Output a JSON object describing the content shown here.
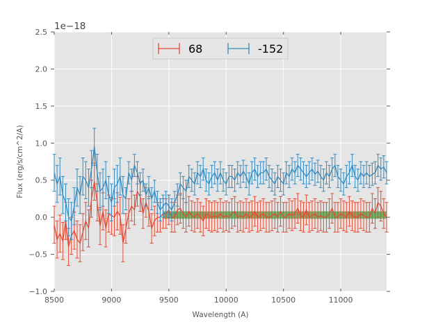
{
  "chart_data": {
    "type": "line",
    "title": "",
    "xlabel": "Wavelength (A)",
    "ylabel": "Flux (erg/s/cm^2/A)",
    "offset_text": "1e−18",
    "xlim": [
      8500,
      11400
    ],
    "ylim": [
      -1.0,
      2.5
    ],
    "xticks": [
      8500,
      9000,
      9500,
      10000,
      10500,
      11000
    ],
    "xtick_labels": [
      "8500",
      "9000",
      "9500",
      "10000",
      "10500",
      "11000"
    ],
    "yticks": [
      -1.0,
      -0.5,
      0.0,
      0.5,
      1.0,
      1.5,
      2.0,
      2.5
    ],
    "ytick_labels": [
      "−1.0",
      "−0.5",
      "0.0",
      "0.5",
      "1.0",
      "1.5",
      "2.0",
      "2.5"
    ],
    "grid": true,
    "legend_position": "upper center",
    "band": {
      "x_start": 9450,
      "x_end": 11400,
      "y_low": -0.02,
      "y_high": 0.08,
      "color": "#4a9a3a"
    },
    "x_start": 8500,
    "x_step": 25,
    "series": [
      {
        "name": "68",
        "color": "#e24a33",
        "values": [
          -0.1,
          -0.3,
          -0.22,
          -0.32,
          -0.05,
          -0.4,
          -0.25,
          -0.18,
          -0.3,
          -0.35,
          -0.2,
          -0.05,
          -0.15,
          0.25,
          0.48,
          0.2,
          -0.12,
          0.08,
          -0.15,
          0.05,
          0.02,
          0.0,
          0.08,
          0.02,
          -0.35,
          -0.15,
          0.05,
          0.15,
          0.1,
          0.35,
          0.28,
          0.05,
          0.2,
          0.08,
          -0.15,
          -0.05,
          0.0,
          0.0,
          0.05,
          0.05,
          0.1,
          0.0,
          0.0,
          0.1,
          0.12,
          0.05,
          0.0,
          0.08,
          0.02,
          0.0,
          0.05,
          0.0,
          -0.05,
          0.05,
          0.02,
          0.0,
          0.02,
          0.0,
          0.05,
          0.0,
          0.02,
          0.0,
          0.05,
          0.08,
          0.0,
          0.02,
          0.0,
          0.05,
          0.0,
          0.02,
          0.08,
          0.0,
          0.02,
          0.05,
          0.0,
          0.0,
          0.02,
          0.05,
          0.0,
          0.08,
          0.0,
          0.0,
          0.05,
          0.02,
          0.05,
          0.12,
          0.02,
          0.0,
          0.1,
          0.0,
          0.02,
          0.05,
          0.0,
          0.02,
          0.0,
          0.0,
          0.05,
          0.12,
          0.0,
          0.0,
          0.05,
          0.02,
          0.0,
          0.08,
          0.02,
          0.0,
          0.0,
          0.05,
          0.02,
          0.0,
          0.0,
          0.12,
          0.05,
          0.2,
          0.15,
          0.05,
          0.0
        ],
        "errors": [
          0.25,
          0.25,
          0.25,
          0.25,
          0.25,
          0.25,
          0.25,
          0.25,
          0.25,
          0.25,
          0.25,
          0.25,
          0.25,
          0.25,
          0.25,
          0.25,
          0.25,
          0.25,
          0.25,
          0.25,
          0.25,
          0.25,
          0.25,
          0.25,
          0.25,
          0.2,
          0.2,
          0.2,
          0.2,
          0.2,
          0.2,
          0.2,
          0.2,
          0.2,
          0.2,
          0.2,
          0.2,
          0.2,
          0.2,
          0.2,
          0.2,
          0.2,
          0.2,
          0.2,
          0.2,
          0.2,
          0.2,
          0.2,
          0.2,
          0.2,
          0.2,
          0.2,
          0.2,
          0.2,
          0.2,
          0.2,
          0.2,
          0.2,
          0.2,
          0.2,
          0.2,
          0.2,
          0.2,
          0.2,
          0.2,
          0.2,
          0.2,
          0.2,
          0.2,
          0.2,
          0.2,
          0.2,
          0.2,
          0.2,
          0.2,
          0.2,
          0.2,
          0.2,
          0.2,
          0.2,
          0.2,
          0.2,
          0.2,
          0.2,
          0.2,
          0.2,
          0.2,
          0.2,
          0.2,
          0.2,
          0.2,
          0.2,
          0.2,
          0.2,
          0.2,
          0.2,
          0.2,
          0.2,
          0.2,
          0.2,
          0.2,
          0.2,
          0.2,
          0.2,
          0.2,
          0.2,
          0.2,
          0.2,
          0.2,
          0.2,
          0.2,
          0.2,
          0.2,
          0.2,
          0.2,
          0.2,
          0.2
        ]
      },
      {
        "name": "-152",
        "color": "#348abd",
        "values": [
          0.6,
          0.45,
          0.55,
          0.3,
          0.2,
          0.0,
          -0.05,
          0.15,
          0.4,
          0.3,
          0.55,
          0.5,
          0.4,
          0.65,
          0.95,
          0.6,
          0.35,
          0.4,
          0.5,
          0.3,
          0.2,
          0.4,
          0.45,
          0.55,
          0.3,
          0.25,
          0.6,
          0.5,
          0.7,
          0.6,
          0.45,
          0.5,
          0.3,
          0.4,
          0.25,
          0.35,
          0.2,
          0.1,
          0.15,
          0.2,
          0.15,
          0.1,
          0.2,
          0.3,
          0.45,
          0.4,
          0.35,
          0.55,
          0.5,
          0.45,
          0.6,
          0.55,
          0.65,
          0.5,
          0.45,
          0.55,
          0.6,
          0.5,
          0.6,
          0.5,
          0.45,
          0.55,
          0.55,
          0.5,
          0.6,
          0.55,
          0.62,
          0.55,
          0.45,
          0.6,
          0.65,
          0.55,
          0.6,
          0.6,
          0.65,
          0.55,
          0.5,
          0.45,
          0.55,
          0.5,
          0.45,
          0.6,
          0.55,
          0.65,
          0.6,
          0.7,
          0.65,
          0.6,
          0.55,
          0.6,
          0.65,
          0.58,
          0.62,
          0.55,
          0.5,
          0.6,
          0.55,
          0.65,
          0.7,
          0.55,
          0.5,
          0.45,
          0.55,
          0.6,
          0.7,
          0.55,
          0.5,
          0.6,
          0.55,
          0.6,
          0.55,
          0.58,
          0.6,
          0.7,
          0.65,
          0.68,
          0.6
        ],
        "errors": [
          0.25,
          0.25,
          0.25,
          0.25,
          0.25,
          0.25,
          0.25,
          0.25,
          0.25,
          0.25,
          0.25,
          0.25,
          0.25,
          0.25,
          0.25,
          0.25,
          0.25,
          0.25,
          0.25,
          0.25,
          0.25,
          0.25,
          0.25,
          0.25,
          0.25,
          0.15,
          0.15,
          0.15,
          0.15,
          0.15,
          0.15,
          0.15,
          0.15,
          0.15,
          0.15,
          0.15,
          0.15,
          0.15,
          0.15,
          0.15,
          0.15,
          0.15,
          0.15,
          0.15,
          0.15,
          0.15,
          0.15,
          0.15,
          0.15,
          0.15,
          0.15,
          0.15,
          0.15,
          0.15,
          0.15,
          0.15,
          0.15,
          0.15,
          0.15,
          0.15,
          0.15,
          0.15,
          0.15,
          0.15,
          0.15,
          0.15,
          0.15,
          0.15,
          0.15,
          0.15,
          0.15,
          0.15,
          0.15,
          0.15,
          0.15,
          0.15,
          0.15,
          0.15,
          0.15,
          0.15,
          0.15,
          0.15,
          0.15,
          0.15,
          0.15,
          0.15,
          0.15,
          0.15,
          0.15,
          0.15,
          0.15,
          0.15,
          0.15,
          0.15,
          0.15,
          0.15,
          0.15,
          0.15,
          0.15,
          0.15,
          0.15,
          0.15,
          0.15,
          0.15,
          0.15,
          0.15,
          0.15,
          0.15,
          0.15,
          0.15,
          0.15,
          0.15,
          0.15,
          0.15,
          0.15,
          0.15,
          0.15
        ]
      }
    ]
  }
}
